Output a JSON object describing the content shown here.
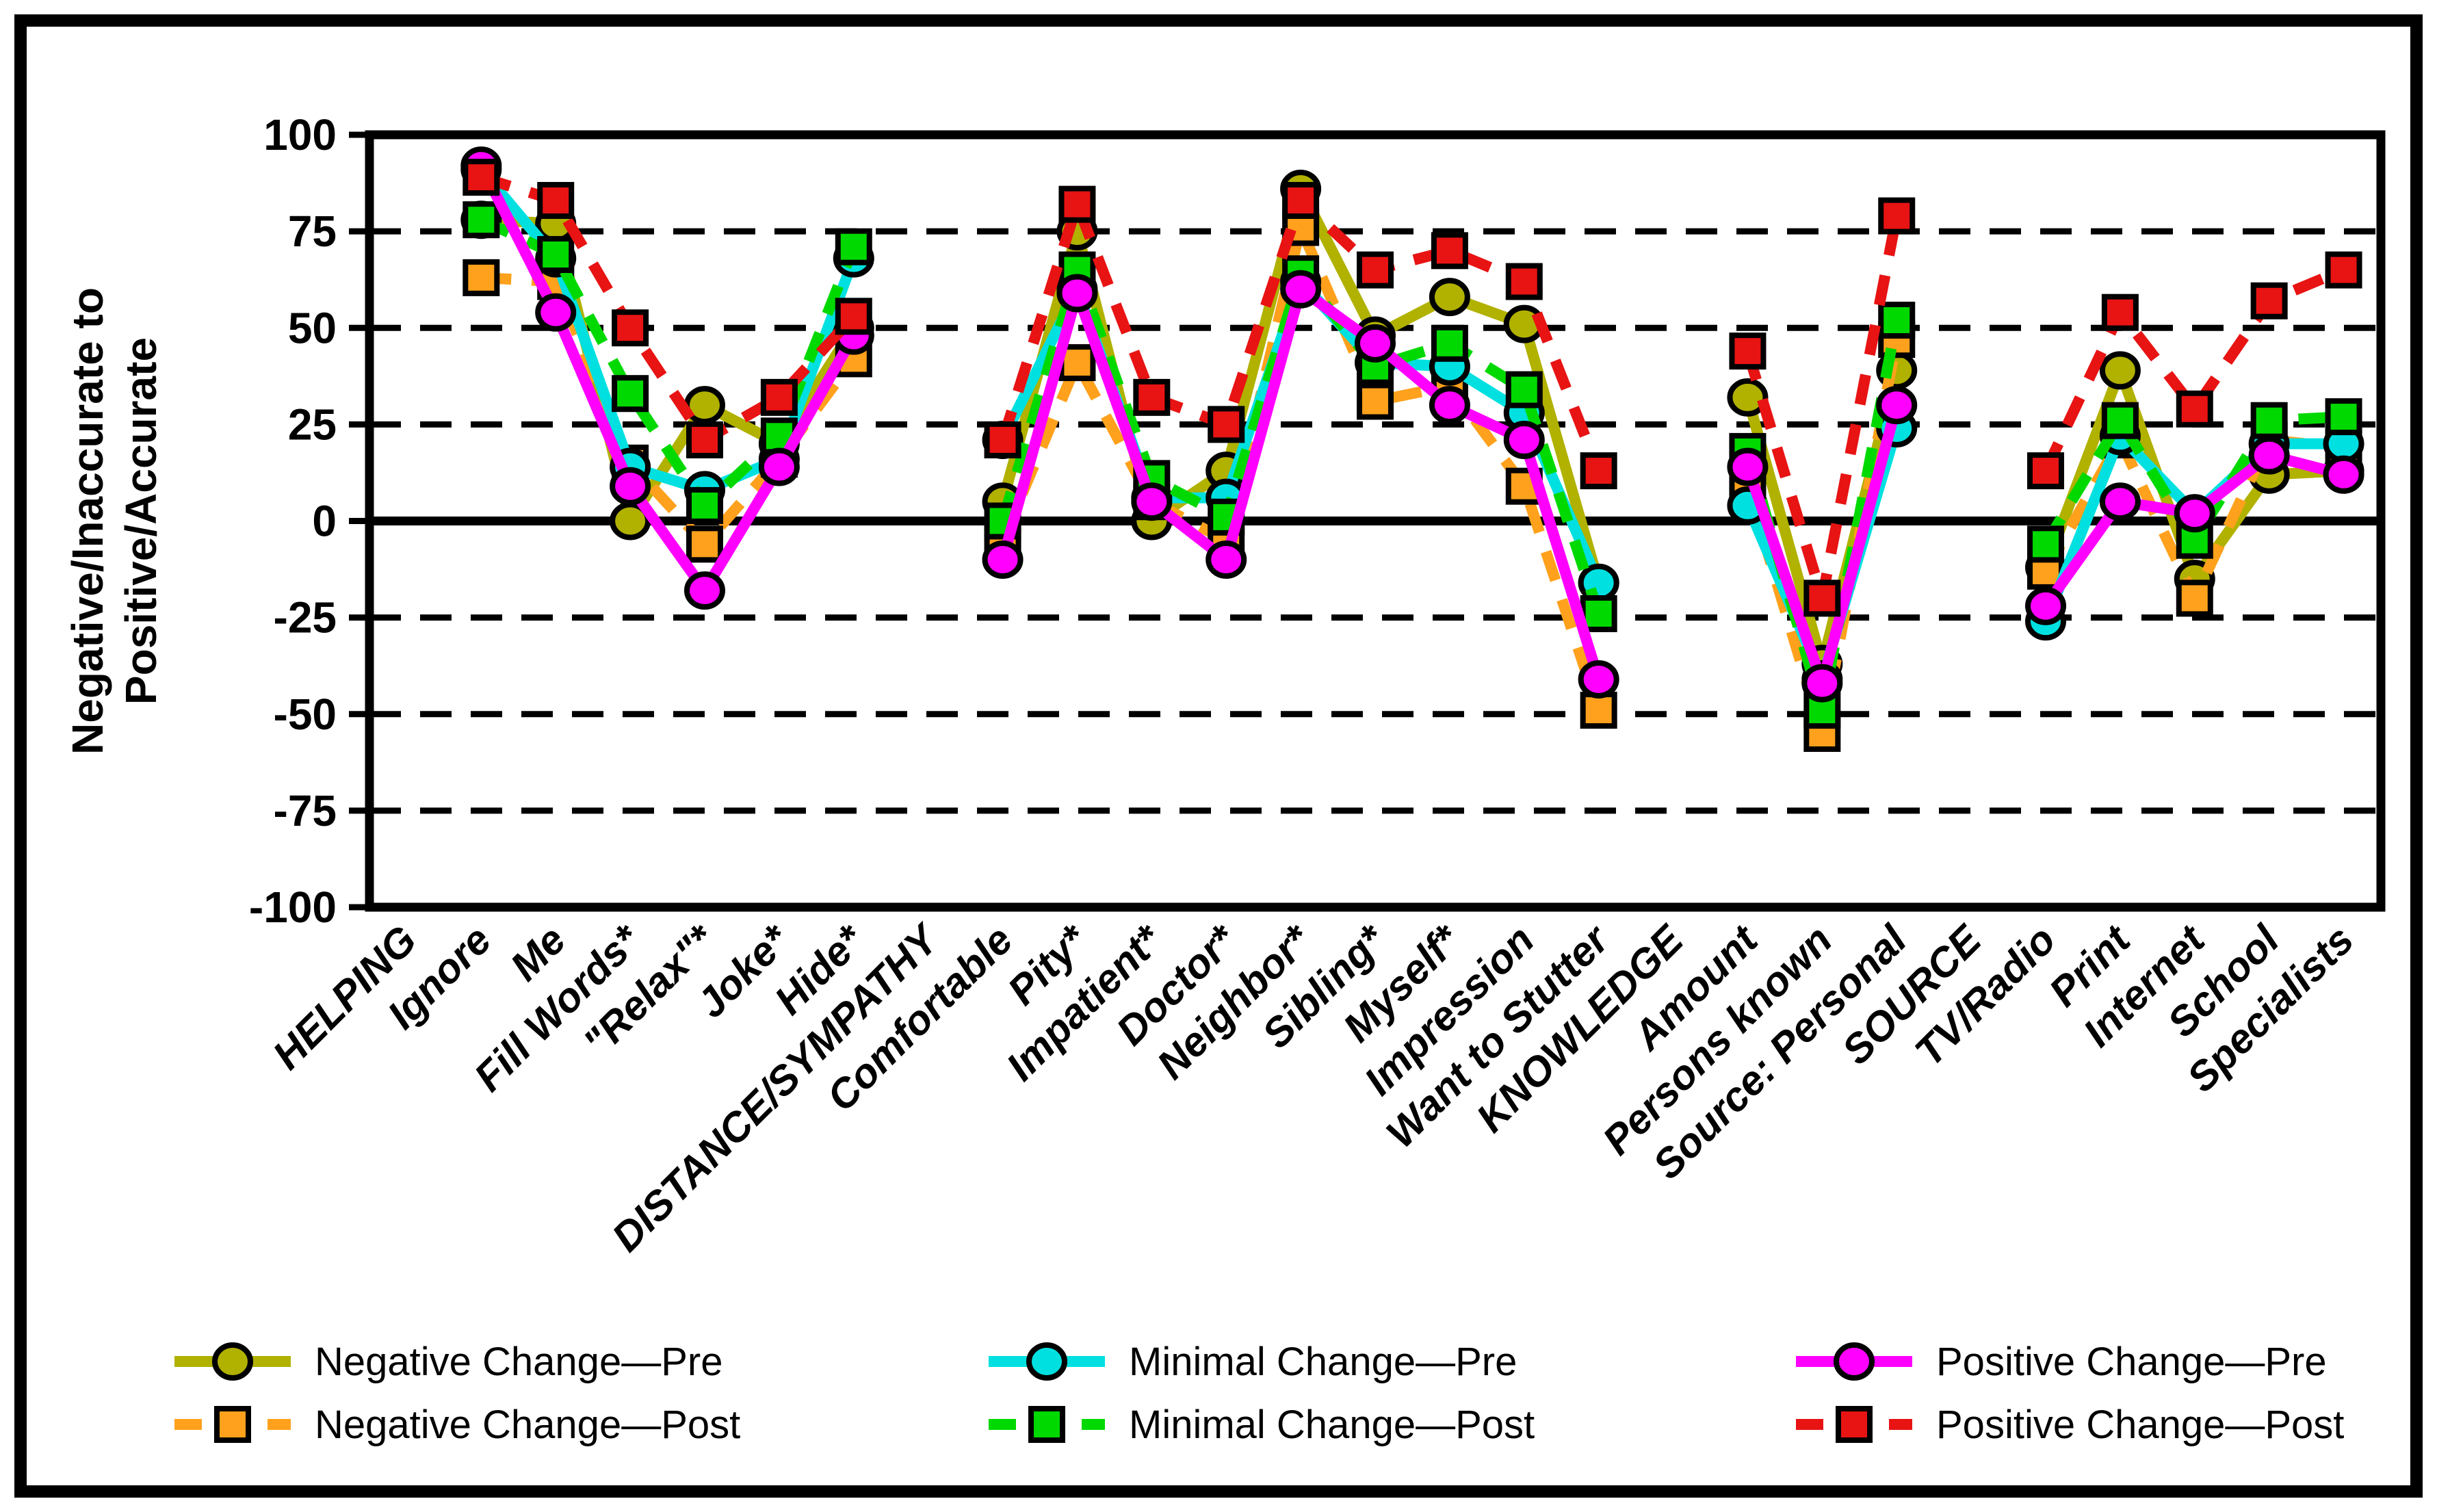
{
  "figure": {
    "border_color": "#000000",
    "background": "#ffffff"
  },
  "chart_data": {
    "type": "line",
    "title": "",
    "xlabel": "",
    "ylabel_lines": [
      "Negative/Inaccurate to",
      "Positive/Accurate"
    ],
    "y_axis": {
      "min": -100,
      "max": 100,
      "step": 25,
      "tick_labels": [
        "100",
        "75",
        "50",
        "25",
        "0",
        "-25",
        "-50",
        "-75",
        "-100"
      ],
      "gridlines": "dashed-every-25-solid-zero"
    },
    "categories": [
      "HELPING",
      "Ignore",
      "Me",
      "Fill Words*",
      "\"Relax\"*",
      "Joke*",
      "Hide*",
      "DISTANCE/SYMPATHY",
      "Comfortable",
      "Pity*",
      "Impatient*",
      "Doctor*",
      "Neighbor*",
      "Sibling*",
      "Myself*",
      "Impression",
      "Want to Stutter",
      "KNOWLEDGE",
      "Amount",
      "Persons known",
      "Source: Personal",
      "SOURCE",
      "TV/Radio",
      "Print",
      "Internet",
      "School",
      "Specialists"
    ],
    "series": [
      {
        "id": "negative-change-pre",
        "name": "Negative Change—Pre",
        "color": "#b1b100",
        "marker": "circle",
        "line": "solid",
        "values": [
          null,
          78,
          77,
          0,
          30,
          20,
          50,
          null,
          5,
          75,
          0,
          13,
          86,
          48,
          58,
          51,
          -16,
          null,
          32,
          -37,
          39,
          null,
          -12,
          39,
          -15,
          12,
          13
        ]
      },
      {
        "id": "negative-change-post",
        "name": "Negative Change—Post",
        "color": "#ffa11c",
        "marker": "square",
        "line": "dashed",
        "values": [
          null,
          63,
          62,
          15,
          -6,
          16,
          42,
          null,
          -5,
          41,
          5,
          -5,
          76,
          31,
          35,
          9,
          -49,
          null,
          9,
          -55,
          47,
          null,
          -13,
          21,
          -20,
          21,
          19
        ]
      },
      {
        "id": "minimal-change-pre",
        "name": "Minimal Change—Pre",
        "color": "#00e0e0",
        "marker": "circle",
        "line": "solid",
        "values": [
          null,
          91,
          68,
          14,
          8,
          16,
          68,
          null,
          21,
          60,
          6,
          6,
          62,
          41,
          40,
          28,
          -16,
          null,
          4,
          -41,
          24,
          null,
          -26,
          22,
          2,
          20,
          20
        ]
      },
      {
        "id": "minimal-change-post",
        "name": "Minimal Change—Post",
        "color": "#00d900",
        "marker": "square",
        "line": "dashed",
        "values": [
          null,
          78,
          69,
          33,
          4,
          22,
          71,
          null,
          0,
          65,
          11,
          1,
          64,
          40,
          46,
          34,
          -24,
          null,
          18,
          -49,
          52,
          null,
          -6,
          26,
          -5,
          26,
          27
        ]
      },
      {
        "id": "positive-change-pre",
        "name": "Positive Change—Pre",
        "color": "#ff00ff",
        "marker": "circle",
        "line": "solid",
        "values": [
          null,
          92,
          54,
          9,
          -18,
          14,
          48,
          null,
          -10,
          59,
          5,
          -10,
          60,
          46,
          30,
          21,
          -41,
          null,
          14,
          -42,
          30,
          null,
          -22,
          5,
          2,
          17,
          12
        ]
      },
      {
        "id": "positive-change-post",
        "name": "Positive Change—Post",
        "color": "#e81313",
        "marker": "square",
        "line": "dashed",
        "values": [
          null,
          89,
          83,
          50,
          21,
          32,
          53,
          null,
          21,
          82,
          32,
          25,
          83,
          65,
          70,
          62,
          13,
          null,
          44,
          -20,
          79,
          null,
          13,
          54,
          29,
          57,
          65
        ]
      }
    ],
    "legend": {
      "position": "bottom",
      "columns": 3,
      "entries": [
        "Negative Change—Pre",
        "Negative Change—Post",
        "Minimal Change—Pre",
        "Minimal Change—Post",
        "Positive Change—Pre",
        "Positive Change—Post"
      ]
    }
  }
}
